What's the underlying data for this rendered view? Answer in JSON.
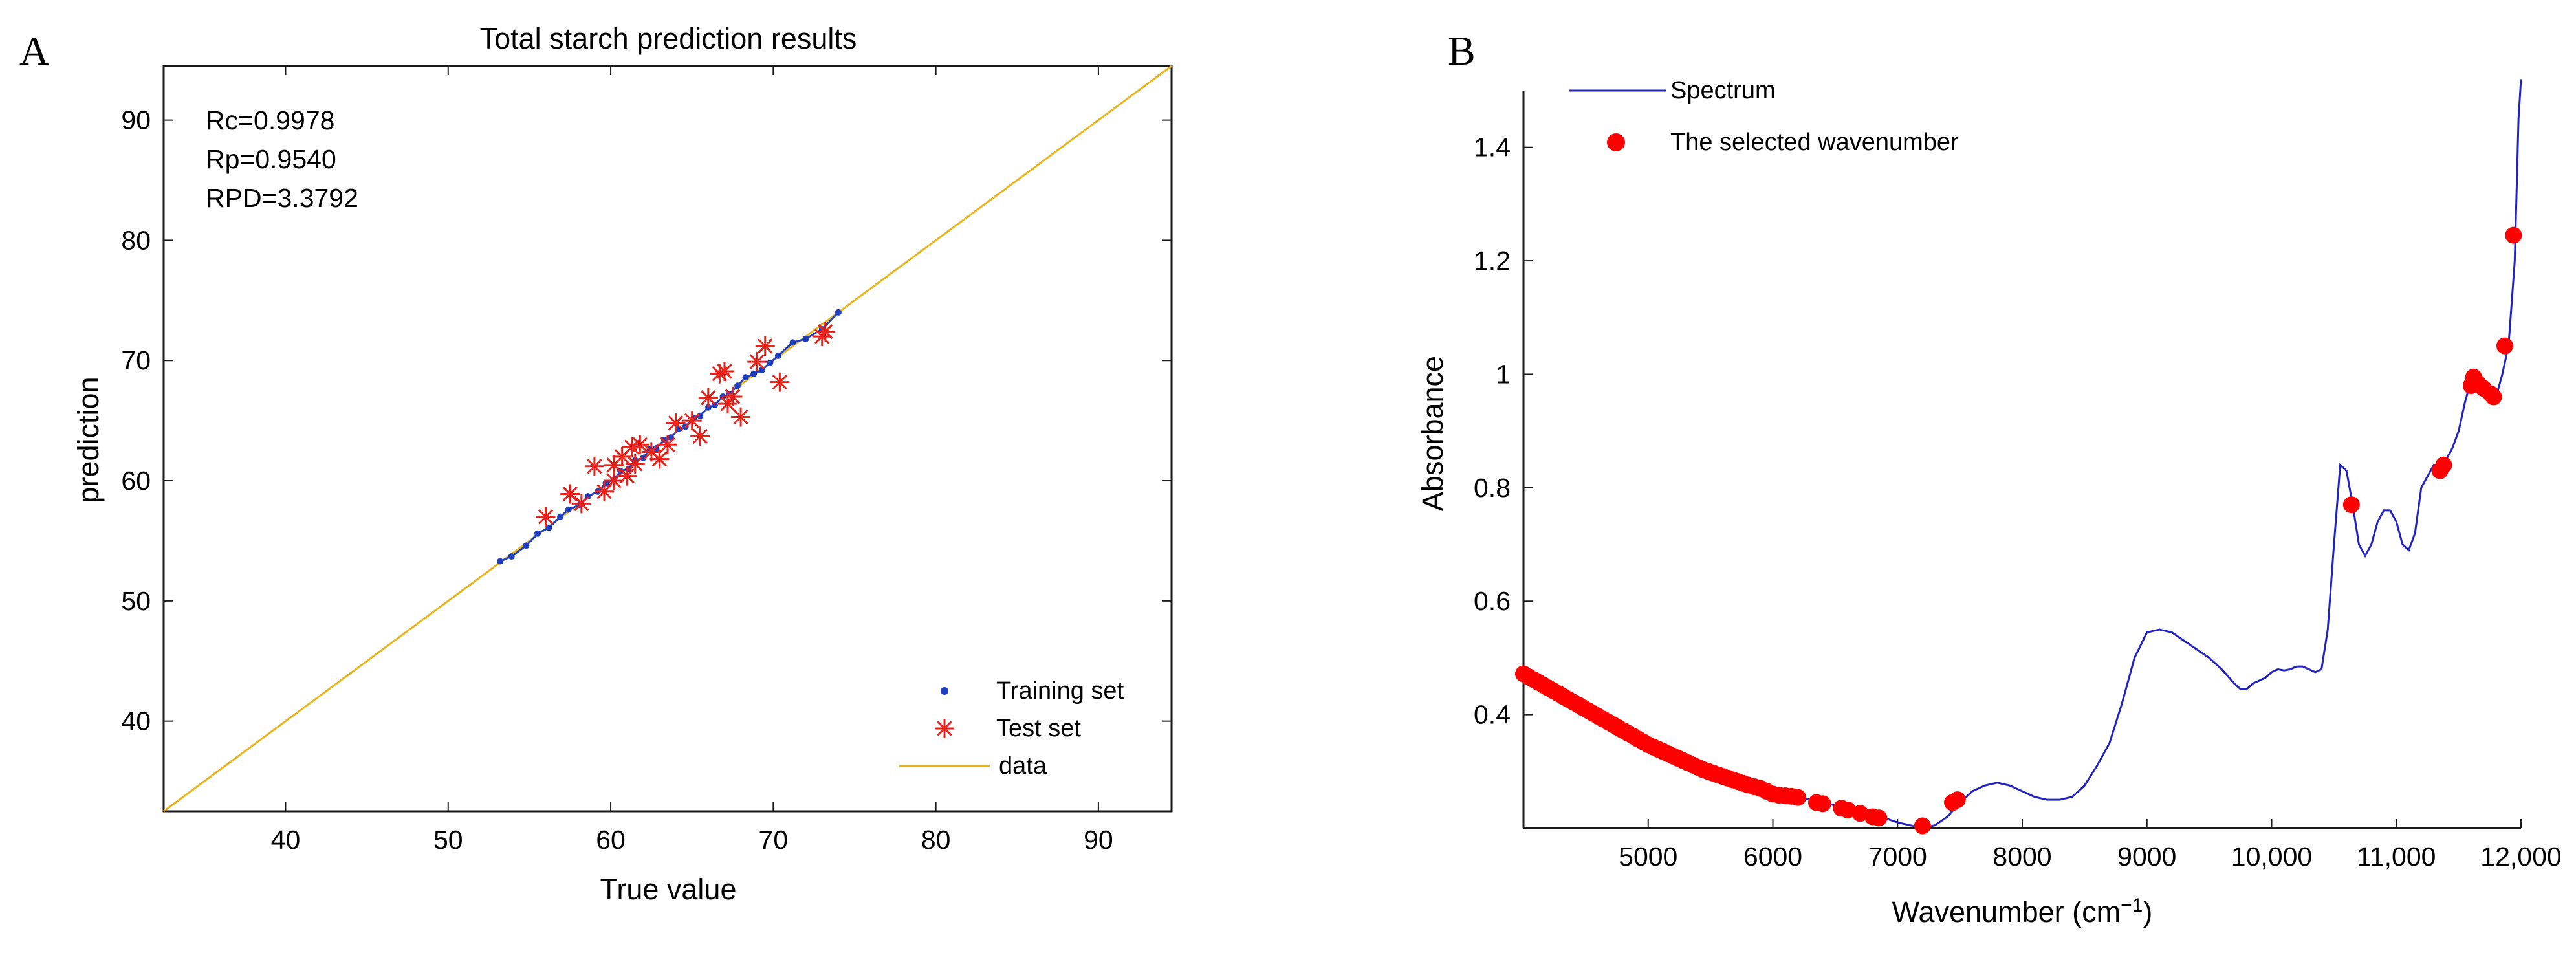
{
  "chart_data": [
    {
      "panel": "A",
      "type": "scatter",
      "title": "Total starch prediction results",
      "xlabel": "True value",
      "ylabel": "prediction",
      "xlim": [
        32.5,
        94.5
      ],
      "ylim": [
        32.5,
        94.5
      ],
      "xticks": [
        40,
        50,
        60,
        70,
        80,
        90
      ],
      "yticks": [
        40,
        50,
        60,
        70,
        80,
        90
      ],
      "grid": false,
      "stats": [
        "Rc=0.9978",
        "Rp=0.9540",
        "RPD=3.3792"
      ],
      "legend": [
        {
          "label": "Training set",
          "marker": "dot",
          "color": "#1f3fbf"
        },
        {
          "label": "Test set",
          "marker": "star",
          "color": "#e8201a"
        },
        {
          "label": "data",
          "marker": "line",
          "color": "#e8b41e"
        }
      ],
      "legend_position": "bottom-right",
      "line": {
        "name": "data",
        "x": [
          32.5,
          94.5
        ],
        "y": [
          32.5,
          94.5
        ],
        "color": "#e8b41e"
      },
      "series": [
        {
          "name": "Training set",
          "color": "#1f3fbf",
          "points": [
            [
              53.2,
              53.3
            ],
            [
              53.9,
              53.7
            ],
            [
              54.8,
              54.6
            ],
            [
              55.5,
              55.6
            ],
            [
              56.2,
              56.1
            ],
            [
              56.9,
              57.0
            ],
            [
              57.4,
              57.6
            ],
            [
              58.1,
              58.0
            ],
            [
              58.6,
              58.7
            ],
            [
              59.2,
              59.1
            ],
            [
              59.7,
              59.8
            ],
            [
              60.2,
              60.1
            ],
            [
              60.6,
              60.8
            ],
            [
              61.1,
              61.0
            ],
            [
              61.5,
              61.7
            ],
            [
              62.0,
              61.9
            ],
            [
              62.4,
              62.6
            ],
            [
              62.8,
              62.7
            ],
            [
              63.3,
              63.4
            ],
            [
              63.7,
              63.6
            ],
            [
              64.2,
              64.3
            ],
            [
              64.6,
              64.5
            ],
            [
              65.1,
              65.2
            ],
            [
              65.5,
              65.4
            ],
            [
              66.0,
              66.1
            ],
            [
              66.4,
              66.3
            ],
            [
              66.9,
              67.0
            ],
            [
              67.3,
              67.2
            ],
            [
              67.8,
              67.9
            ],
            [
              68.3,
              68.6
            ],
            [
              68.8,
              68.9
            ],
            [
              69.3,
              69.2
            ],
            [
              69.8,
              69.8
            ],
            [
              70.3,
              70.4
            ],
            [
              71.2,
              71.5
            ],
            [
              72.0,
              71.8
            ],
            [
              73.0,
              72.6
            ],
            [
              74.0,
              74.0
            ]
          ]
        },
        {
          "name": "Test set",
          "color": "#e8201a",
          "points": [
            [
              56.0,
              57.0
            ],
            [
              57.5,
              58.9
            ],
            [
              58.2,
              58.1
            ],
            [
              59.0,
              61.2
            ],
            [
              59.6,
              59.1
            ],
            [
              60.2,
              60.0
            ],
            [
              60.2,
              61.3
            ],
            [
              60.7,
              62.0
            ],
            [
              61.0,
              60.4
            ],
            [
              61.3,
              62.8
            ],
            [
              61.5,
              61.4
            ],
            [
              61.8,
              63.0
            ],
            [
              62.5,
              62.4
            ],
            [
              63.0,
              61.8
            ],
            [
              63.5,
              63.0
            ],
            [
              64.0,
              64.8
            ],
            [
              65.0,
              65.0
            ],
            [
              65.5,
              63.7
            ],
            [
              66.0,
              66.9
            ],
            [
              66.7,
              68.9
            ],
            [
              67.0,
              69.1
            ],
            [
              67.2,
              66.4
            ],
            [
              67.5,
              67.0
            ],
            [
              68.0,
              65.3
            ],
            [
              69.0,
              69.9
            ],
            [
              69.5,
              71.2
            ],
            [
              70.4,
              68.2
            ],
            [
              73.0,
              72.0
            ],
            [
              73.2,
              72.4
            ]
          ]
        }
      ]
    },
    {
      "panel": "B",
      "type": "line",
      "title": "",
      "xlabel": "Wavenumber (cm",
      "xlabel_sup": "−1",
      "xlabel_close": ")",
      "ylabel": "Absorbance",
      "xlim": [
        4000,
        12000
      ],
      "ylim": [
        0.2,
        1.5
      ],
      "xticks": [
        5000,
        6000,
        7000,
        8000,
        9000,
        10000,
        11000,
        12000
      ],
      "xtick_labels": [
        "5000",
        "6000",
        "7000",
        "8000",
        "9000",
        "10,000",
        "11,000",
        "12,000"
      ],
      "yticks": [
        0.4,
        0.6,
        0.8,
        1.0,
        1.2,
        1.4
      ],
      "ytick_labels": [
        "0.4",
        "0.6",
        "0.8",
        "1",
        "1.2",
        "1.4"
      ],
      "grid": false,
      "legend": [
        {
          "label": "Spectrum",
          "marker": "line",
          "color": "#2323c0"
        },
        {
          "label": "The selected wavenumber",
          "marker": "dot",
          "color": "#ff0000"
        }
      ],
      "legend_position": "top-left",
      "series": [
        {
          "name": "Spectrum",
          "color": "#2323c0",
          "x": [
            4000,
            4200,
            4400,
            4600,
            4800,
            5000,
            5200,
            5400,
            5600,
            5800,
            6000,
            6200,
            6400,
            6600,
            6800,
            7000,
            7200,
            7300,
            7400,
            7500,
            7600,
            7700,
            7800,
            7900,
            8000,
            8100,
            8200,
            8300,
            8400,
            8500,
            8600,
            8700,
            8800,
            8900,
            9000,
            9100,
            9200,
            9300,
            9400,
            9500,
            9600,
            9700,
            9750,
            9800,
            9850,
            9900,
            9950,
            10000,
            10050,
            10100,
            10150,
            10200,
            10250,
            10300,
            10350,
            10400,
            10450,
            10500,
            10550,
            10600,
            10650,
            10700,
            10750,
            10800,
            10850,
            10900,
            10950,
            11000,
            11050,
            11100,
            11150,
            11200,
            11250,
            11300,
            11350,
            11400,
            11450,
            11500,
            11550,
            11600,
            11650,
            11700,
            11750,
            11800,
            11850,
            11900,
            11950,
            11980,
            12000
          ],
          "y": [
            0.47,
            0.445,
            0.42,
            0.395,
            0.37,
            0.345,
            0.325,
            0.305,
            0.29,
            0.275,
            0.265,
            0.255,
            0.245,
            0.235,
            0.225,
            0.21,
            0.2,
            0.205,
            0.22,
            0.245,
            0.265,
            0.275,
            0.28,
            0.275,
            0.265,
            0.255,
            0.25,
            0.25,
            0.255,
            0.275,
            0.31,
            0.35,
            0.42,
            0.5,
            0.545,
            0.55,
            0.545,
            0.53,
            0.515,
            0.5,
            0.48,
            0.455,
            0.445,
            0.445,
            0.455,
            0.46,
            0.465,
            0.475,
            0.48,
            0.478,
            0.48,
            0.485,
            0.485,
            0.48,
            0.475,
            0.48,
            0.55,
            0.7,
            0.84,
            0.83,
            0.77,
            0.7,
            0.68,
            0.7,
            0.74,
            0.76,
            0.76,
            0.74,
            0.7,
            0.69,
            0.72,
            0.8,
            0.82,
            0.84,
            0.84,
            0.85,
            0.87,
            0.9,
            0.95,
            0.99,
            0.985,
            0.975,
            0.965,
            0.96,
            1.0,
            1.05,
            1.2,
            1.45,
            1.52
          ]
        },
        {
          "name": "The selected wavenumber",
          "color": "#ff0000",
          "x": [
            4000,
            4040,
            4080,
            4120,
            4160,
            4200,
            4240,
            4280,
            4320,
            4360,
            4400,
            4440,
            4480,
            4520,
            4560,
            4600,
            4640,
            4680,
            4720,
            4760,
            4800,
            4840,
            4880,
            4920,
            4960,
            5000,
            5040,
            5080,
            5120,
            5160,
            5200,
            5240,
            5280,
            5320,
            5360,
            5400,
            5440,
            5480,
            5520,
            5560,
            5600,
            5640,
            5680,
            5720,
            5760,
            5800,
            5850,
            5900,
            5950,
            6000,
            6050,
            6100,
            6150,
            6200,
            6350,
            6400,
            6550,
            6600,
            6700,
            6800,
            6850,
            7200,
            7440,
            7480,
            10640,
            11350,
            11380,
            11600,
            11620,
            11650,
            11700,
            11760,
            11780,
            11870,
            11940
          ],
          "y": [
            0.472,
            0.467,
            0.462,
            0.457,
            0.452,
            0.447,
            0.442,
            0.437,
            0.432,
            0.427,
            0.422,
            0.417,
            0.412,
            0.407,
            0.402,
            0.397,
            0.392,
            0.387,
            0.382,
            0.377,
            0.372,
            0.367,
            0.362,
            0.357,
            0.352,
            0.347,
            0.343,
            0.339,
            0.335,
            0.331,
            0.327,
            0.323,
            0.319,
            0.315,
            0.311,
            0.307,
            0.303,
            0.3,
            0.297,
            0.294,
            0.291,
            0.288,
            0.285,
            0.282,
            0.279,
            0.276,
            0.273,
            0.27,
            0.265,
            0.26,
            0.258,
            0.257,
            0.256,
            0.254,
            0.245,
            0.243,
            0.235,
            0.232,
            0.226,
            0.22,
            0.218,
            0.204,
            0.245,
            0.25,
            0.77,
            0.83,
            0.84,
            0.98,
            0.995,
            0.985,
            0.975,
            0.965,
            0.96,
            1.05,
            1.245
          ]
        }
      ]
    }
  ]
}
